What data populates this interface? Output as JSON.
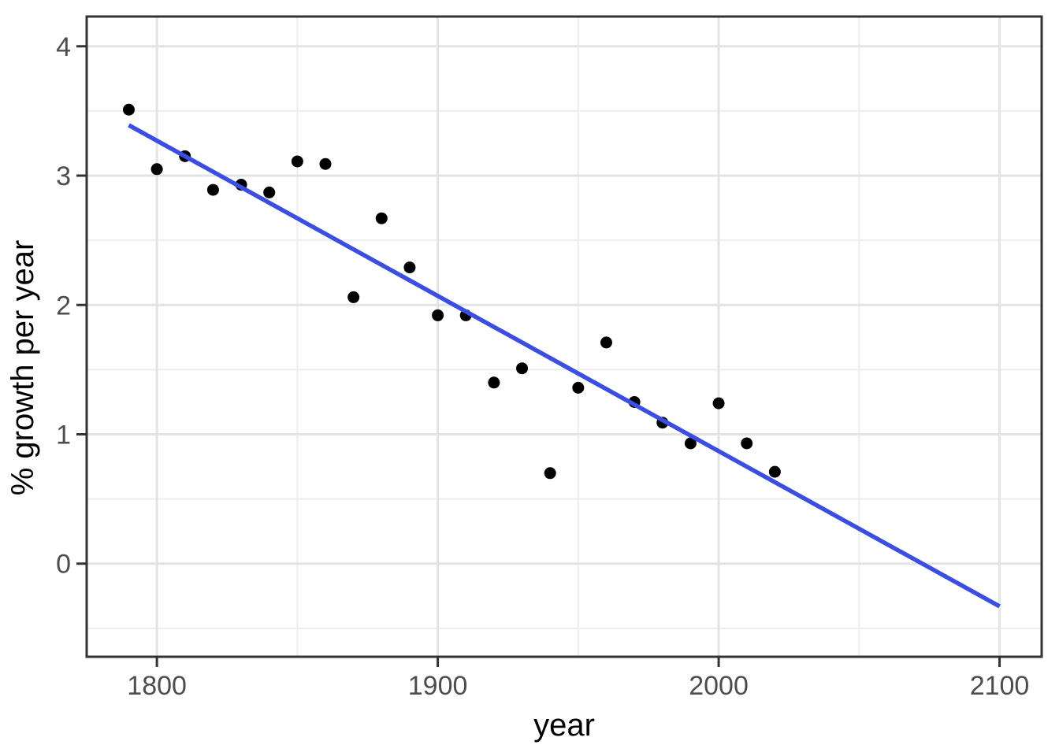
{
  "figure": {
    "background_color": "#ffffff"
  },
  "chart_data": {
    "type": "scatter",
    "title": "",
    "xlabel": "year",
    "ylabel": "% growth per year",
    "xlim": [
      1775,
      2115
    ],
    "ylim": [
      -0.72,
      4.23
    ],
    "x_ticks": [
      1800,
      1900,
      2000,
      2100
    ],
    "x_minor_ticks": [
      1850,
      1950,
      2050
    ],
    "y_ticks": [
      0,
      1,
      2,
      3,
      4
    ],
    "y_minor_ticks": [
      -0.5,
      0.5,
      1.5,
      2.5,
      3.5
    ],
    "grid": "major-and-minor",
    "legend_position": "none",
    "series": [
      {
        "name": "growth-rate-points",
        "geom": "point",
        "color": "#000000",
        "point_radius": 7.5,
        "points": [
          [
            1790,
            3.51
          ],
          [
            1800,
            3.05
          ],
          [
            1810,
            3.15
          ],
          [
            1820,
            2.89
          ],
          [
            1830,
            2.93
          ],
          [
            1840,
            2.87
          ],
          [
            1850,
            3.11
          ],
          [
            1860,
            3.09
          ],
          [
            1870,
            2.06
          ],
          [
            1880,
            2.67
          ],
          [
            1890,
            2.29
          ],
          [
            1900,
            1.92
          ],
          [
            1910,
            1.92
          ],
          [
            1920,
            1.4
          ],
          [
            1930,
            1.51
          ],
          [
            1940,
            0.7
          ],
          [
            1950,
            1.36
          ],
          [
            1960,
            1.71
          ],
          [
            1970,
            1.25
          ],
          [
            1980,
            1.09
          ],
          [
            1990,
            0.93
          ],
          [
            2000,
            1.24
          ],
          [
            2010,
            0.93
          ],
          [
            2020,
            0.71
          ]
        ]
      },
      {
        "name": "linear-trend-line",
        "geom": "line",
        "color": "#3a4ee4",
        "line_width": 5.5,
        "points": [
          [
            1790,
            3.39
          ],
          [
            2100,
            -0.33
          ]
        ]
      }
    ],
    "theme": {
      "panel_background": "#ffffff",
      "panel_border_color": "#333333",
      "grid_major_color": "#e3e3e3",
      "grid_minor_color": "#ededed",
      "tick_mark_color": "#333333",
      "tick_label_color": "#4d4d4d",
      "axis_title_color": "#000000"
    }
  }
}
